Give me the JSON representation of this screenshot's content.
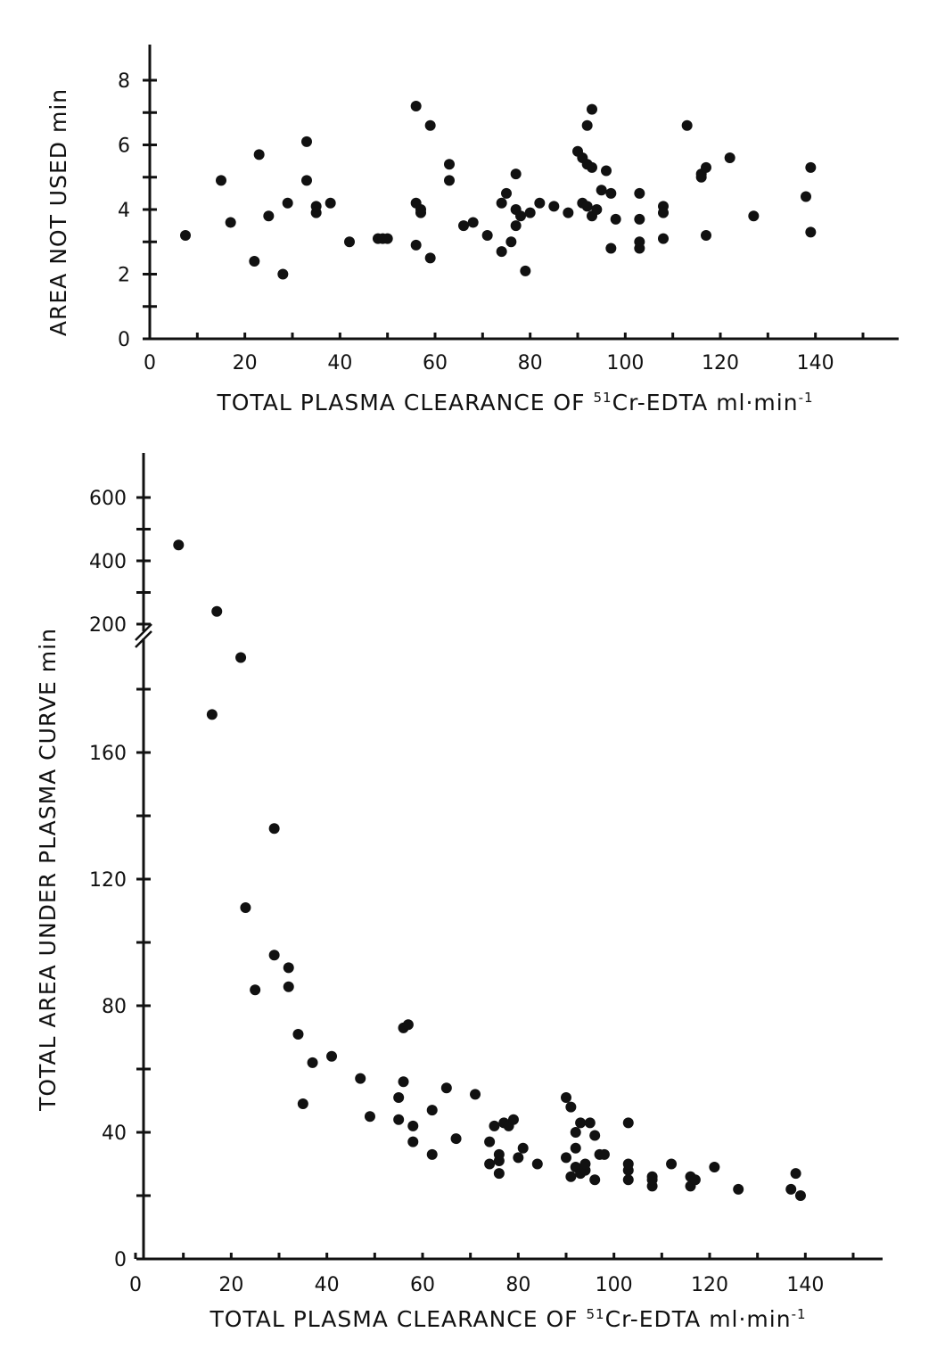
{
  "chart_data": [
    {
      "type": "scatter",
      "title": "",
      "xlabel": "TOTAL PLASMA CLEARANCE OF 51Cr-EDTA ml·min-1",
      "xlabel_parts": {
        "prefix": "TOTAL PLASMA CLEARANCE OF ",
        "superscript": "51",
        "middle": "Cr-EDTA ml·min",
        "unit_superscript": "-1"
      },
      "ylabel": "AREA NOT USED min",
      "xlim": [
        0,
        155
      ],
      "ylim": [
        0,
        9
      ],
      "xticks": [
        0,
        20,
        40,
        60,
        80,
        100,
        120,
        140
      ],
      "yticks": [
        0,
        2,
        4,
        6,
        8
      ],
      "grid": false,
      "series": [
        {
          "points": [
            [
              7.5,
              3.2
            ],
            [
              15,
              4.9
            ],
            [
              17,
              3.6
            ],
            [
              22,
              2.4
            ],
            [
              23,
              5.7
            ],
            [
              25,
              3.8
            ],
            [
              28,
              2.0
            ],
            [
              29,
              4.2
            ],
            [
              33,
              6.1
            ],
            [
              33,
              4.9
            ],
            [
              35,
              3.9
            ],
            [
              35,
              4.1
            ],
            [
              38,
              4.2
            ],
            [
              42,
              3.0
            ],
            [
              48,
              3.1
            ],
            [
              49,
              3.1
            ],
            [
              50,
              3.1
            ],
            [
              56,
              7.2
            ],
            [
              56,
              4.2
            ],
            [
              56,
              2.9
            ],
            [
              57,
              3.9
            ],
            [
              57,
              4.0
            ],
            [
              59,
              6.6
            ],
            [
              59,
              2.5
            ],
            [
              63,
              5.4
            ],
            [
              63,
              4.9
            ],
            [
              66,
              3.5
            ],
            [
              68,
              3.6
            ],
            [
              71,
              3.2
            ],
            [
              74,
              4.2
            ],
            [
              74,
              2.7
            ],
            [
              75,
              4.5
            ],
            [
              76,
              3.0
            ],
            [
              77,
              5.1
            ],
            [
              77,
              4.0
            ],
            [
              77,
              3.5
            ],
            [
              78,
              3.8
            ],
            [
              79,
              2.1
            ],
            [
              80,
              3.9
            ],
            [
              82,
              4.2
            ],
            [
              85,
              4.1
            ],
            [
              88,
              3.9
            ],
            [
              90,
              5.8
            ],
            [
              91,
              5.6
            ],
            [
              91,
              4.2
            ],
            [
              92,
              6.6
            ],
            [
              92,
              5.4
            ],
            [
              92,
              4.1
            ],
            [
              93,
              7.1
            ],
            [
              93,
              5.3
            ],
            [
              93,
              3.8
            ],
            [
              94,
              4.0
            ],
            [
              95,
              4.6
            ],
            [
              96,
              5.2
            ],
            [
              97,
              4.5
            ],
            [
              97,
              2.8
            ],
            [
              98,
              3.7
            ],
            [
              103,
              4.5
            ],
            [
              103,
              3.7
            ],
            [
              103,
              3.0
            ],
            [
              103,
              2.8
            ],
            [
              108,
              4.1
            ],
            [
              108,
              3.9
            ],
            [
              108,
              3.1
            ],
            [
              113,
              6.6
            ],
            [
              116,
              5.1
            ],
            [
              116,
              5.0
            ],
            [
              117,
              5.3
            ],
            [
              117,
              3.2
            ],
            [
              122,
              5.6
            ],
            [
              127,
              3.8
            ],
            [
              138,
              4.4
            ],
            [
              139,
              5.3
            ],
            [
              139,
              3.3
            ]
          ]
        }
      ]
    },
    {
      "type": "scatter",
      "title": "",
      "xlabel": "TOTAL PLASMA CLEARANCE OF 51Cr-EDTA ml·min-1",
      "xlabel_parts": {
        "prefix": "TOTAL PLASMA CLEARANCE OF ",
        "superscript": "51",
        "middle": "Cr-EDTA ml·min",
        "unit_superscript": "-1"
      },
      "ylabel": "TOTAL AREA UNDER PLASMA CURVE min",
      "xlim": [
        0,
        155
      ],
      "ylim_linear": [
        0,
        200
      ],
      "y_break": {
        "after": 180,
        "upper_ticks": [
          200,
          400,
          600
        ],
        "note": "broken axis; upper segment compressed"
      },
      "xticks": [
        0,
        20,
        40,
        60,
        80,
        100,
        120,
        140
      ],
      "yticks": [
        0,
        40,
        80,
        120,
        160,
        200,
        400,
        600
      ],
      "grid": false,
      "series": [
        {
          "points": [
            [
              9,
              450
            ],
            [
              16,
              172
            ],
            [
              17,
              240
            ],
            [
              22,
              190
            ],
            [
              23,
              111
            ],
            [
              25,
              85
            ],
            [
              29,
              136
            ],
            [
              29,
              96
            ],
            [
              32,
              92
            ],
            [
              32,
              86
            ],
            [
              34,
              71
            ],
            [
              35,
              49
            ],
            [
              37,
              62
            ],
            [
              41,
              64
            ],
            [
              47,
              57
            ],
            [
              49,
              45
            ],
            [
              55,
              44
            ],
            [
              55,
              51
            ],
            [
              56,
              56
            ],
            [
              56,
              73
            ],
            [
              57,
              74
            ],
            [
              58,
              37
            ],
            [
              58,
              42
            ],
            [
              62,
              33
            ],
            [
              62,
              47
            ],
            [
              65,
              54
            ],
            [
              67,
              38
            ],
            [
              71,
              52
            ],
            [
              74,
              30
            ],
            [
              74,
              37
            ],
            [
              75,
              42
            ],
            [
              76,
              27
            ],
            [
              76,
              31
            ],
            [
              76,
              33
            ],
            [
              77,
              43
            ],
            [
              78,
              42
            ],
            [
              79,
              44
            ],
            [
              80,
              32
            ],
            [
              81,
              35
            ],
            [
              84,
              30
            ],
            [
              90,
              32
            ],
            [
              90,
              51
            ],
            [
              91,
              26
            ],
            [
              91,
              48
            ],
            [
              92,
              35
            ],
            [
              92,
              40
            ],
            [
              92,
              29
            ],
            [
              93,
              27
            ],
            [
              93,
              43
            ],
            [
              94,
              28
            ],
            [
              94,
              30
            ],
            [
              95,
              43
            ],
            [
              96,
              25
            ],
            [
              96,
              39
            ],
            [
              97,
              33
            ],
            [
              98,
              33
            ],
            [
              103,
              28
            ],
            [
              103,
              30
            ],
            [
              103,
              25
            ],
            [
              103,
              43
            ],
            [
              108,
              26
            ],
            [
              108,
              23
            ],
            [
              108,
              25
            ],
            [
              112,
              30
            ],
            [
              116,
              26
            ],
            [
              116,
              23
            ],
            [
              117,
              25
            ],
            [
              121,
              29
            ],
            [
              126,
              22
            ],
            [
              137,
              22
            ],
            [
              138,
              27
            ],
            [
              139,
              20
            ]
          ]
        }
      ]
    }
  ]
}
